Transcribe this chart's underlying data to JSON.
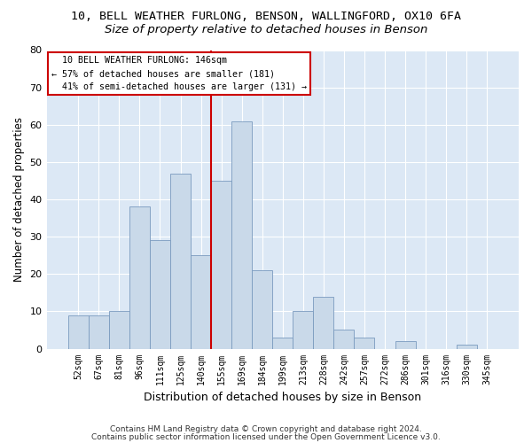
{
  "title1": "10, BELL WEATHER FURLONG, BENSON, WALLINGFORD, OX10 6FA",
  "title2": "Size of property relative to detached houses in Benson",
  "xlabel": "Distribution of detached houses by size in Benson",
  "ylabel": "Number of detached properties",
  "categories": [
    "52sqm",
    "67sqm",
    "81sqm",
    "96sqm",
    "111sqm",
    "125sqm",
    "140sqm",
    "155sqm",
    "169sqm",
    "184sqm",
    "199sqm",
    "213sqm",
    "228sqm",
    "242sqm",
    "257sqm",
    "272sqm",
    "286sqm",
    "301sqm",
    "316sqm",
    "330sqm",
    "345sqm"
  ],
  "values": [
    9,
    9,
    10,
    38,
    29,
    47,
    25,
    45,
    61,
    21,
    3,
    10,
    14,
    5,
    3,
    0,
    2,
    0,
    0,
    1,
    0
  ],
  "bar_color": "#c9d9e9",
  "bar_edge_color": "#7a9abf",
  "bar_width": 1.0,
  "vline_x_index": 7.0,
  "vline_color": "#cc0000",
  "smaller_pct": 57,
  "smaller_count": 181,
  "larger_pct": 41,
  "larger_count": 131,
  "property_label": "10 BELL WEATHER FURLONG: 146sqm",
  "ylim": [
    0,
    80
  ],
  "yticks": [
    0,
    10,
    20,
    30,
    40,
    50,
    60,
    70,
    80
  ],
  "bg_color": "#dce8f5",
  "grid_color": "#ffffff",
  "footer1": "Contains HM Land Registry data © Crown copyright and database right 2024.",
  "footer2": "Contains public sector information licensed under the Open Government Licence v3.0.",
  "annotation_box_color": "#cc0000",
  "title1_fontsize": 9.5,
  "title2_fontsize": 9.5,
  "ylabel_text": "Number of detached properties",
  "xlabel_fontsize": 9,
  "ylabel_fontsize": 8.5,
  "tick_fontsize": 7,
  "footer_fontsize": 6.5
}
